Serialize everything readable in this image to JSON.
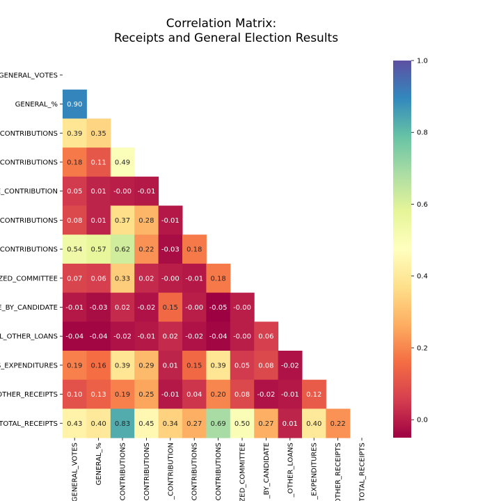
{
  "chart_data": {
    "type": "heatmap",
    "title": [
      "Correlation Matrix:",
      "Receipts and General Election Results"
    ],
    "row_labels": [
      "GENERAL_VOTES",
      "GENERAL_%",
      "_CONTRIBUTIONS",
      "_CONTRIBUTIONS",
      "E_CONTRIBUTION",
      "_CONTRIBUTIONS",
      "_CONTRIBUTIONS",
      "ZED_COMMITTEE",
      "E_BY_CANDIDATE",
      "L_OTHER_LOANS",
      "S_EXPENDITURES",
      "OTHER_RECEIPTS",
      "TOTAL_RECEIPTS"
    ],
    "col_labels": [
      "GENERAL_VOTES",
      "GENERAL_%",
      "CONTRIBUTIONS",
      "CONTRIBUTIONS",
      "_CONTRIBUTION",
      "CONTRIBUTIONS",
      "CONTRIBUTIONS",
      "ZED_COMMITTEE",
      "_BY_CANDIDATE",
      "_OTHER_LOANS",
      "_EXPENDITURES",
      "OTHER_RECEIPTS",
      "TOTAL_RECEIPTS"
    ],
    "values": [
      [],
      [
        0.9
      ],
      [
        0.39,
        0.35
      ],
      [
        0.18,
        0.11,
        0.49
      ],
      [
        0.05,
        0.01,
        -0.0,
        -0.01
      ],
      [
        0.08,
        0.01,
        0.37,
        0.28,
        -0.01
      ],
      [
        0.54,
        0.57,
        0.62,
        0.22,
        -0.03,
        0.18
      ],
      [
        0.07,
        0.06,
        0.33,
        0.02,
        -0.0,
        -0.01,
        0.18
      ],
      [
        -0.01,
        -0.03,
        0.02,
        -0.02,
        0.15,
        -0.0,
        -0.05,
        -0.0
      ],
      [
        -0.04,
        -0.04,
        -0.02,
        -0.01,
        0.02,
        -0.02,
        -0.04,
        -0.0,
        0.06
      ],
      [
        0.19,
        0.16,
        0.39,
        0.29,
        0.01,
        0.15,
        0.39,
        0.05,
        0.08,
        -0.02
      ],
      [
        0.1,
        0.13,
        0.19,
        0.25,
        -0.01,
        0.04,
        0.2,
        0.08,
        -0.02,
        -0.01,
        0.12
      ],
      [
        0.43,
        0.4,
        0.83,
        0.45,
        0.34,
        0.27,
        0.69,
        0.5,
        0.27,
        0.01,
        0.4,
        0.22
      ]
    ],
    "mask": "upper-triangle-including-diagonal",
    "colormap": "Spectral",
    "vmin": -0.05,
    "vmax": 1.0,
    "colorbar": {
      "ticks": [
        0.0,
        0.2,
        0.4,
        0.6,
        0.8,
        1.0
      ],
      "tick_labels": [
        "0.0",
        "0.2",
        "0.4",
        "0.6",
        "0.8",
        "1.0"
      ],
      "placement": "right"
    },
    "grid": false
  }
}
